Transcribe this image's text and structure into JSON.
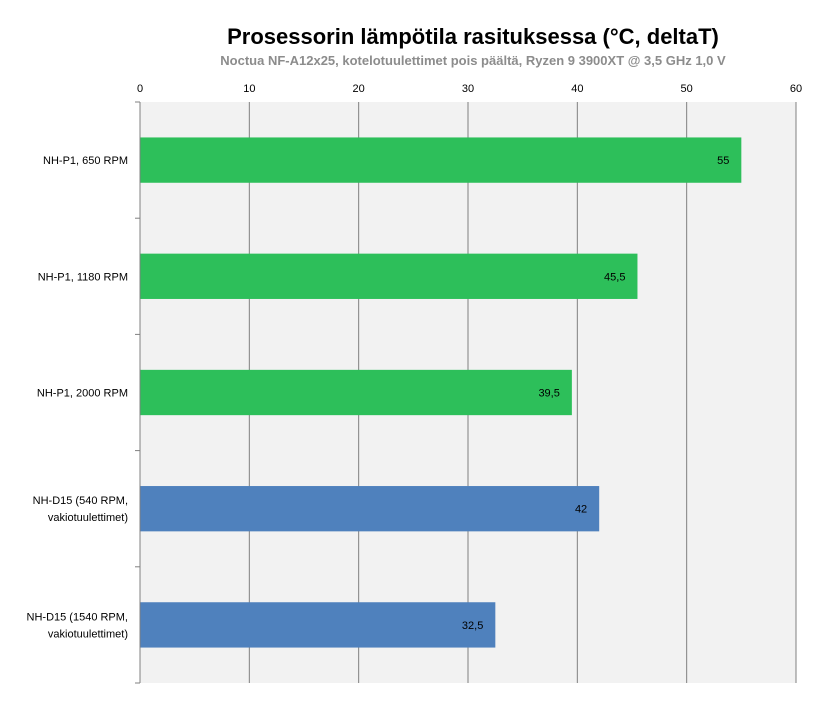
{
  "chart_data": {
    "type": "bar",
    "orientation": "horizontal",
    "title": "Prosessorin lämpötila rasituksessa (°C, deltaT)",
    "subtitle": "Noctua NF-A12x25, kotelotuulettimet pois päältä, Ryzen 9 3900XT @ 3,5 GHz 1,0 V",
    "xlim": [
      0,
      60
    ],
    "x_ticks": [
      0,
      10,
      20,
      30,
      40,
      50,
      60
    ],
    "x_axis_position": "top",
    "grid": true,
    "legend": "none",
    "categories": [
      [
        "NH-P1, 650 RPM"
      ],
      [
        "NH-P1, 1180 RPM"
      ],
      [
        "NH-P1, 2000 RPM"
      ],
      [
        "NH-D15 (540 RPM,",
        "vakiotuulettimet)"
      ],
      [
        "NH-D15 (1540 RPM,",
        "vakiotuulettimet)"
      ]
    ],
    "values": [
      55,
      45.5,
      39.5,
      42,
      32.5
    ],
    "value_labels": [
      "55",
      "45,5",
      "39,5",
      "42",
      "32,5"
    ],
    "bar_colors": [
      "#2dbf5a",
      "#2dbf5a",
      "#2dbf5a",
      "#4f81bd",
      "#4f81bd"
    ],
    "plot_background": "#f2f2f2",
    "gridline_color": "#808080"
  }
}
